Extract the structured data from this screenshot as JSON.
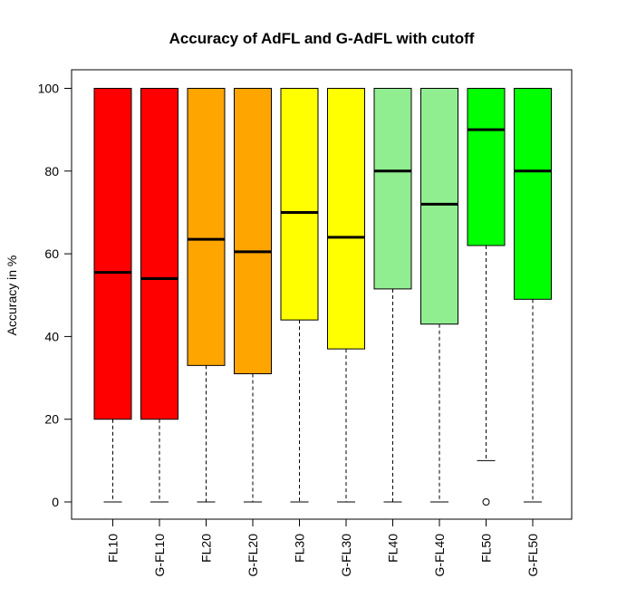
{
  "chart_data": {
    "type": "box",
    "title": "Accuracy of AdFL and G-AdFL with cutoff",
    "xlabel": "",
    "ylabel": "Accuracy in %",
    "ylim": [
      -5,
      105
    ],
    "yticks": [
      0,
      20,
      40,
      60,
      80,
      100
    ],
    "grid": false,
    "categories": [
      "FL10",
      "G-FL10",
      "FL20",
      "G-FL20",
      "FL30",
      "G-FL30",
      "FL40",
      "G-FL40",
      "FL50",
      "G-FL50"
    ],
    "colors": [
      "#ff0000",
      "#ff0000",
      "#ffa500",
      "#ffa500",
      "#ffff00",
      "#ffff00",
      "#90ee90",
      "#90ee90",
      "#00ff00",
      "#00ff00"
    ],
    "boxes": [
      {
        "min": 0,
        "q1": 20,
        "median": 55.5,
        "q3": 100,
        "max": 100,
        "outliers": []
      },
      {
        "min": 0,
        "q1": 20,
        "median": 54,
        "q3": 100,
        "max": 100,
        "outliers": []
      },
      {
        "min": 0,
        "q1": 33,
        "median": 63.5,
        "q3": 100,
        "max": 100,
        "outliers": []
      },
      {
        "min": 0,
        "q1": 31,
        "median": 60.5,
        "q3": 100,
        "max": 100,
        "outliers": []
      },
      {
        "min": 0,
        "q1": 44,
        "median": 70,
        "q3": 100,
        "max": 100,
        "outliers": []
      },
      {
        "min": 0,
        "q1": 37,
        "median": 64,
        "q3": 100,
        "max": 100,
        "outliers": []
      },
      {
        "min": 0,
        "q1": 51.5,
        "median": 80,
        "q3": 100,
        "max": 100,
        "outliers": []
      },
      {
        "min": 0,
        "q1": 43,
        "median": 72,
        "q3": 100,
        "max": 100,
        "outliers": []
      },
      {
        "min": 10,
        "q1": 62,
        "median": 90,
        "q3": 100,
        "max": 100,
        "outliers": [
          0
        ]
      },
      {
        "min": 0,
        "q1": 49,
        "median": 80,
        "q3": 100,
        "max": 100,
        "outliers": []
      }
    ]
  }
}
